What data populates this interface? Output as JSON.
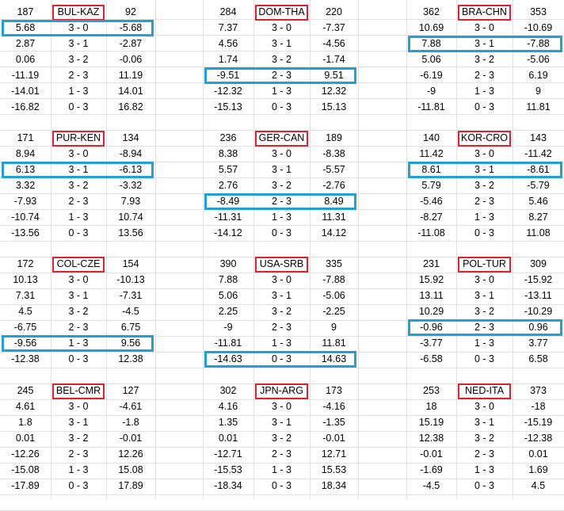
{
  "blocks": [
    {
      "left": "187",
      "title": "BUL-KAZ",
      "right": "92",
      "rows": [
        [
          "5.68",
          "3 - 0",
          "-5.68"
        ],
        [
          "2.87",
          "3 - 1",
          "-2.87"
        ],
        [
          "0.06",
          "3 - 2",
          "-0.06"
        ],
        [
          "-11.19",
          "2 - 3",
          "11.19"
        ],
        [
          "-14.01",
          "1 - 3",
          "14.01"
        ],
        [
          "-16.82",
          "0 - 3",
          "16.82"
        ]
      ],
      "highlight": 0
    },
    {
      "left": "284",
      "title": "DOM-THA",
      "right": "220",
      "rows": [
        [
          "7.37",
          "3 - 0",
          "-7.37"
        ],
        [
          "4.56",
          "3 - 1",
          "-4.56"
        ],
        [
          "1.74",
          "3 - 2",
          "-1.74"
        ],
        [
          "-9.51",
          "2 - 3",
          "9.51"
        ],
        [
          "-12.32",
          "1 - 3",
          "12.32"
        ],
        [
          "-15.13",
          "0 - 3",
          "15.13"
        ]
      ],
      "highlight": 3
    },
    {
      "left": "362",
      "title": "BRA-CHN",
      "right": "353",
      "rows": [
        [
          "10.69",
          "3 - 0",
          "-10.69"
        ],
        [
          "7.88",
          "3 - 1",
          "-7.88"
        ],
        [
          "5.06",
          "3 - 2",
          "-5.06"
        ],
        [
          "-6.19",
          "2 - 3",
          "6.19"
        ],
        [
          "-9",
          "1 - 3",
          "9"
        ],
        [
          "-11.81",
          "0 - 3",
          "11.81"
        ]
      ],
      "highlight": 1
    },
    {
      "left": "171",
      "title": "PUR-KEN",
      "right": "134",
      "rows": [
        [
          "8.94",
          "3 - 0",
          "-8.94"
        ],
        [
          "6.13",
          "3 - 1",
          "-6.13"
        ],
        [
          "3.32",
          "3 - 2",
          "-3.32"
        ],
        [
          "-7.93",
          "2 - 3",
          "7.93"
        ],
        [
          "-10.74",
          "1 - 3",
          "10.74"
        ],
        [
          "-13.56",
          "0 - 3",
          "13.56"
        ]
      ],
      "highlight": 1
    },
    {
      "left": "236",
      "title": "GER-CAN",
      "right": "189",
      "rows": [
        [
          "8.38",
          "3 - 0",
          "-8.38"
        ],
        [
          "5.57",
          "3 - 1",
          "-5.57"
        ],
        [
          "2.76",
          "3 - 2",
          "-2.76"
        ],
        [
          "-8.49",
          "2 - 3",
          "8.49"
        ],
        [
          "-11.31",
          "1 - 3",
          "11.31"
        ],
        [
          "-14.12",
          "0 - 3",
          "14.12"
        ]
      ],
      "highlight": 3
    },
    {
      "left": "140",
      "title": "KOR-CRO",
      "right": "143",
      "rows": [
        [
          "11.42",
          "3 - 0",
          "-11.42"
        ],
        [
          "8.61",
          "3 - 1",
          "-8.61"
        ],
        [
          "5.79",
          "3 - 2",
          "-5.79"
        ],
        [
          "-5.46",
          "2 - 3",
          "5.46"
        ],
        [
          "-8.27",
          "1 - 3",
          "8.27"
        ],
        [
          "-11.08",
          "0 - 3",
          "11.08"
        ]
      ],
      "highlight": 1
    },
    {
      "left": "172",
      "title": "COL-CZE",
      "right": "154",
      "rows": [
        [
          "10.13",
          "3 - 0",
          "-10.13"
        ],
        [
          "7.31",
          "3 - 1",
          "-7.31"
        ],
        [
          "4.5",
          "3 - 2",
          "-4.5"
        ],
        [
          "-6.75",
          "2 - 3",
          "6.75"
        ],
        [
          "-9.56",
          "1 - 3",
          "9.56"
        ],
        [
          "-12.38",
          "0 - 3",
          "12.38"
        ]
      ],
      "highlight": 4
    },
    {
      "left": "390",
      "title": "USA-SRB",
      "right": "335",
      "rows": [
        [
          "7.88",
          "3 - 0",
          "-7.88"
        ],
        [
          "5.06",
          "3 - 1",
          "-5.06"
        ],
        [
          "2.25",
          "3 - 2",
          "-2.25"
        ],
        [
          "-9",
          "2 - 3",
          "9"
        ],
        [
          "-11.81",
          "1 - 3",
          "11.81"
        ],
        [
          "-14.63",
          "0 - 3",
          "14.63"
        ]
      ],
      "highlight": 5
    },
    {
      "left": "231",
      "title": "POL-TUR",
      "right": "309",
      "rows": [
        [
          "15.92",
          "3 - 0",
          "-15.92"
        ],
        [
          "13.11",
          "3 - 1",
          "-13.11"
        ],
        [
          "10.29",
          "3 - 2",
          "-10.29"
        ],
        [
          "-0.96",
          "2 - 3",
          "0.96"
        ],
        [
          "-3.77",
          "1 - 3",
          "3.77"
        ],
        [
          "-6.58",
          "0 - 3",
          "6.58"
        ]
      ],
      "highlight": 3
    },
    {
      "left": "245",
      "title": "BEL-CMR",
      "right": "127",
      "rows": [
        [
          "4.61",
          "3 - 0",
          "-4.61"
        ],
        [
          "1.8",
          "3 - 1",
          "-1.8"
        ],
        [
          "0.01",
          "3 - 2",
          "-0.01"
        ],
        [
          "-12.26",
          "2 - 3",
          "12.26"
        ],
        [
          "-15.08",
          "1 - 3",
          "15.08"
        ],
        [
          "-17.89",
          "0 - 3",
          "17.89"
        ]
      ],
      "highlight": null
    },
    {
      "left": "302",
      "title": "JPN-ARG",
      "right": "173",
      "rows": [
        [
          "4.16",
          "3 - 0",
          "-4.16"
        ],
        [
          "1.35",
          "3 - 1",
          "-1.35"
        ],
        [
          "0.01",
          "3 - 2",
          "-0.01"
        ],
        [
          "-12.71",
          "2 - 3",
          "12.71"
        ],
        [
          "-15.53",
          "1 - 3",
          "15.53"
        ],
        [
          "-18.34",
          "0 - 3",
          "18.34"
        ]
      ],
      "highlight": null
    },
    {
      "left": "253",
      "title": "NED-ITA",
      "right": "373",
      "rows": [
        [
          "18",
          "3 - 0",
          "-18"
        ],
        [
          "15.19",
          "3 - 1",
          "-15.19"
        ],
        [
          "12.38",
          "3 - 2",
          "-12.38"
        ],
        [
          "-0.01",
          "2 - 3",
          "0.01"
        ],
        [
          "-1.69",
          "1 - 3",
          "1.69"
        ],
        [
          "-4.5",
          "0 - 3",
          "4.5"
        ]
      ],
      "highlight": null
    }
  ]
}
